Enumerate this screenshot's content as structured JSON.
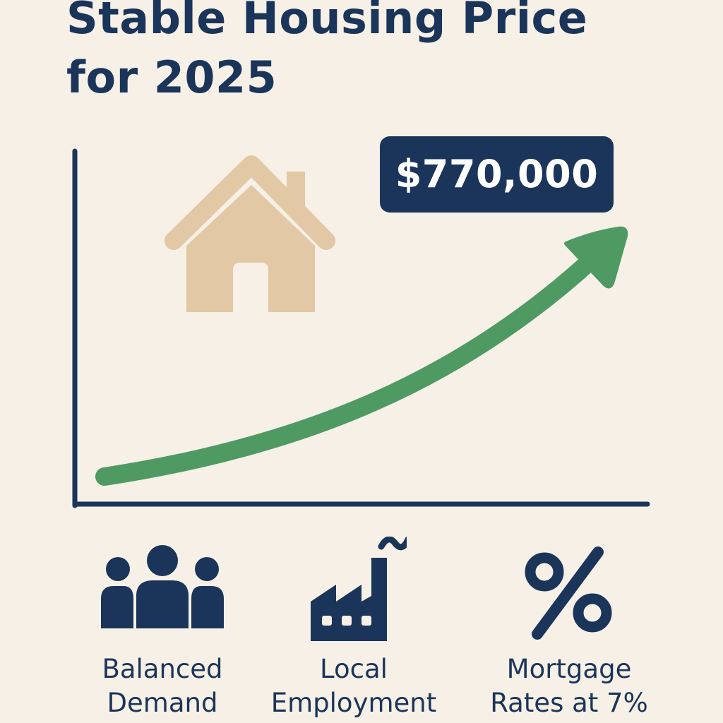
{
  "title": "Stable Housing Price\nfor 2025",
  "price_callout": "$770,000",
  "colors": {
    "background": "#f6f0e6",
    "navy": "#1b355a",
    "green": "#4f9a62",
    "house": "#e2c8a4"
  },
  "icons": [
    "house-icon",
    "people-icon",
    "factory-icon",
    "percent-icon"
  ],
  "chart_data": {
    "type": "line",
    "title": "Stable Housing Price\nfor 2025",
    "xlabel": "",
    "ylabel": "",
    "grid": false,
    "trend": "rising",
    "end_label": "$770,000"
  },
  "factors": [
    {
      "label": "Balanced\nDemand",
      "icon": "people-icon"
    },
    {
      "label": "Local\nEmployment",
      "icon": "factory-icon"
    },
    {
      "label": "Mortgage\nRates at 7%",
      "icon": "percent-icon"
    }
  ]
}
